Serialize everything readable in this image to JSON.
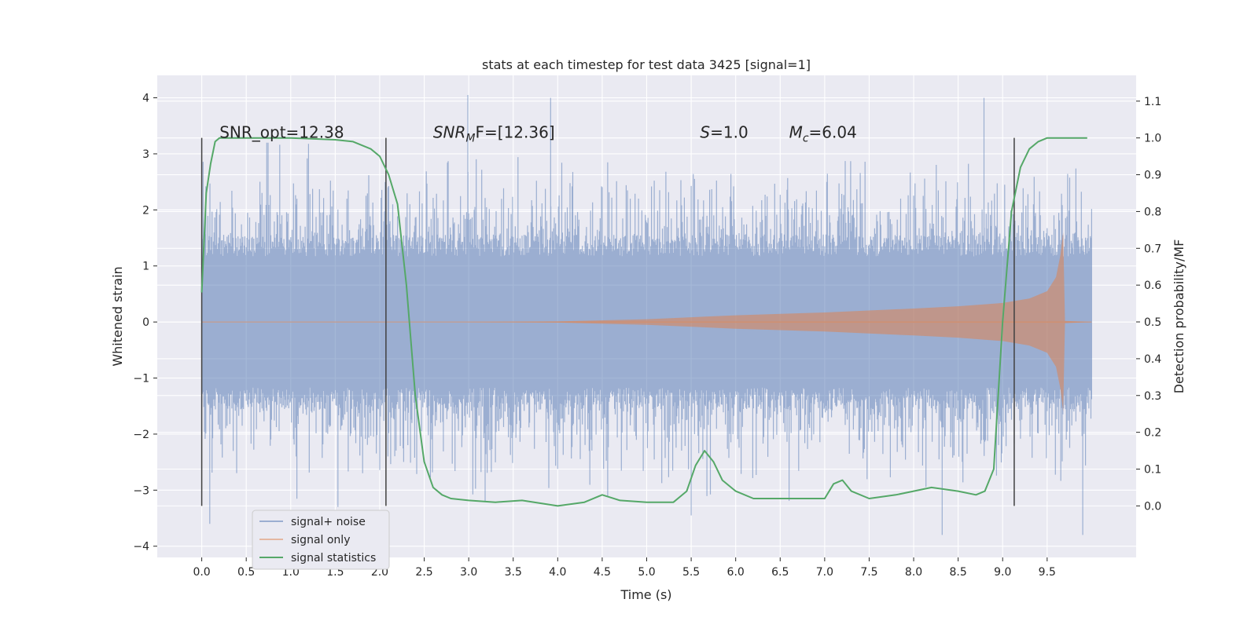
{
  "chart_data": {
    "type": "line",
    "title": "stats at each timestep for test data 3425 [signal=1]",
    "xlabel": "Time (s)",
    "ylabel": "Whitened strain",
    "y2label": "Detection probability/MF",
    "xlim": [
      -0.5,
      10.5
    ],
    "ylim": [
      -4.2,
      4.4
    ],
    "y2lim": [
      -0.14,
      1.17
    ],
    "x_ticks": [
      0.0,
      0.5,
      1.0,
      1.5,
      2.0,
      2.5,
      3.0,
      3.5,
      4.0,
      4.5,
      5.0,
      5.5,
      6.0,
      6.5,
      7.0,
      7.5,
      8.0,
      8.5,
      9.0,
      9.5
    ],
    "x_tick_labels": [
      "0.0",
      "0.5",
      "1.0",
      "1.5",
      "2.0",
      "2.5",
      "3.0",
      "3.5",
      "4.0",
      "4.5",
      "5.0",
      "5.5",
      "6.0",
      "6.5",
      "7.0",
      "7.5",
      "8.0",
      "8.5",
      "9.0",
      "9.5"
    ],
    "y_ticks": [
      4,
      3,
      2,
      1,
      0,
      -1,
      -2,
      -3,
      -4
    ],
    "y_tick_labels": [
      "4",
      "3",
      "2",
      "1",
      "0",
      "−1",
      "−2",
      "−3",
      "−4"
    ],
    "y2_ticks": [
      1.1,
      1.0,
      0.9,
      0.8,
      0.7,
      0.6,
      0.5,
      0.4,
      0.3,
      0.2,
      0.1,
      0.0
    ],
    "y2_tick_labels": [
      "1.1",
      "1.0",
      "0.9",
      "0.8",
      "0.7",
      "0.6",
      "0.5",
      "0.4",
      "0.3",
      "0.2",
      "0.1",
      "0.0"
    ],
    "grid": true,
    "legend_position": "lower-left",
    "series": [
      {
        "name": "signal+ noise",
        "color": "#4c72b0",
        "axis": "left",
        "x_range": [
          0.0,
          10.0
        ],
        "core_amplitude": 1.3,
        "peak_envelope": 3.2,
        "notable_peaks": [
          [
            0.09,
            -3.6
          ],
          [
            1.53,
            -3.3
          ],
          [
            2.99,
            4.05
          ],
          [
            3.92,
            4.0
          ],
          [
            5.5,
            -3.45
          ],
          [
            8.79,
            4.0
          ],
          [
            8.32,
            -3.8
          ],
          [
            9.9,
            -3.8
          ]
        ]
      },
      {
        "name": "signal only",
        "color": "#dd8452",
        "axis": "left",
        "x": [
          0.0,
          3.0,
          4.0,
          5.0,
          6.0,
          7.0,
          8.0,
          8.5,
          9.0,
          9.3,
          9.5,
          9.6,
          9.65,
          9.68,
          9.7,
          10.0
        ],
        "amplitude": [
          0.0,
          0.0,
          0.01,
          0.05,
          0.12,
          0.17,
          0.24,
          0.28,
          0.34,
          0.42,
          0.55,
          0.8,
          1.2,
          1.6,
          0.02,
          0.0
        ]
      },
      {
        "name": "signal statistics",
        "color": "#55a868",
        "axis": "right",
        "x": [
          0.0,
          0.05,
          0.1,
          0.15,
          0.2,
          0.3,
          0.5,
          1.0,
          1.5,
          1.7,
          1.9,
          2.0,
          2.1,
          2.2,
          2.3,
          2.4,
          2.5,
          2.6,
          2.7,
          2.8,
          3.0,
          3.3,
          3.6,
          4.0,
          4.3,
          4.5,
          4.7,
          5.0,
          5.3,
          5.45,
          5.55,
          5.65,
          5.75,
          5.85,
          6.0,
          6.2,
          6.5,
          6.8,
          7.0,
          7.1,
          7.2,
          7.3,
          7.5,
          7.8,
          8.0,
          8.2,
          8.5,
          8.7,
          8.8,
          8.9,
          9.0,
          9.1,
          9.2,
          9.3,
          9.4,
          9.5,
          9.7,
          9.95
        ],
        "y": [
          0.58,
          0.85,
          0.93,
          0.99,
          1.0,
          1.0,
          1.0,
          1.0,
          0.995,
          0.99,
          0.97,
          0.95,
          0.9,
          0.82,
          0.6,
          0.3,
          0.12,
          0.05,
          0.03,
          0.02,
          0.015,
          0.01,
          0.015,
          0.0,
          0.01,
          0.03,
          0.015,
          0.01,
          0.01,
          0.04,
          0.11,
          0.15,
          0.12,
          0.07,
          0.04,
          0.02,
          0.02,
          0.02,
          0.02,
          0.06,
          0.07,
          0.04,
          0.02,
          0.03,
          0.04,
          0.05,
          0.04,
          0.03,
          0.04,
          0.1,
          0.5,
          0.8,
          0.92,
          0.97,
          0.99,
          1.0,
          1.0,
          1.0
        ]
      }
    ],
    "vlines": [
      {
        "x": 0.0,
        "color": "#404040"
      },
      {
        "x": 2.07,
        "color": "#404040"
      },
      {
        "x": 9.13,
        "color": "#404040"
      }
    ],
    "annotations": [
      {
        "text": "SNR_opt=12.38",
        "x": 0.2,
        "y": 3.2
      },
      {
        "text": "F=[12.36]",
        "math_prefix": "SNR",
        "math_sub": "M",
        "x": 2.6,
        "y": 3.2
      },
      {
        "text": "=1.0",
        "math_prefix": "S",
        "math_sub": "",
        "x": 5.6,
        "y": 3.2
      },
      {
        "text": "=6.04",
        "math_prefix": "M",
        "math_sub": "c",
        "x": 6.6,
        "y": 3.2
      }
    ]
  }
}
